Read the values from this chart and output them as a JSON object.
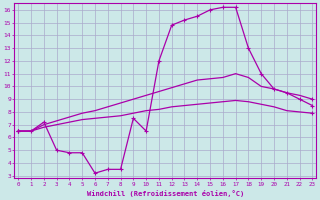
{
  "xlabel": "Windchill (Refroidissement éolien,°C)",
  "x_hours": [
    0,
    1,
    2,
    3,
    4,
    5,
    6,
    7,
    8,
    9,
    10,
    11,
    12,
    13,
    14,
    15,
    16,
    17,
    18,
    19,
    20,
    21,
    22,
    23
  ],
  "y_lower": [
    6.5,
    6.5,
    6.8,
    7.0,
    7.2,
    7.4,
    7.5,
    7.6,
    7.7,
    7.9,
    8.1,
    8.2,
    8.4,
    8.5,
    8.6,
    8.7,
    8.8,
    8.9,
    8.8,
    8.6,
    8.4,
    8.1,
    8.0,
    7.9
  ],
  "y_upper": [
    6.5,
    6.5,
    7.0,
    7.3,
    7.6,
    7.9,
    8.1,
    8.4,
    8.7,
    9.0,
    9.3,
    9.6,
    9.9,
    10.2,
    10.5,
    10.6,
    10.7,
    11.0,
    10.7,
    10.0,
    9.8,
    9.5,
    9.3,
    9.0
  ],
  "y_spike": [
    6.5,
    6.5,
    7.2,
    5.0,
    4.8,
    4.8,
    3.2,
    3.5,
    3.5,
    7.5,
    6.5,
    12.0,
    14.8,
    15.2,
    15.5,
    16.0,
    16.2,
    16.2,
    13.0,
    11.0,
    9.8,
    9.5,
    9.0,
    8.5
  ],
  "bg_color": "#cce8e8",
  "line_color": "#aa00aa",
  "grid_color": "#aaaacc",
  "ylim_min": 3,
  "ylim_max": 16.5,
  "xlim_min": 0,
  "xlim_max": 23,
  "yticks": [
    3,
    4,
    5,
    6,
    7,
    8,
    9,
    10,
    11,
    12,
    13,
    14,
    15,
    16
  ],
  "xticks": [
    0,
    1,
    2,
    3,
    4,
    5,
    6,
    7,
    8,
    9,
    10,
    11,
    12,
    13,
    14,
    15,
    16,
    17,
    18,
    19,
    20,
    21,
    22,
    23
  ]
}
